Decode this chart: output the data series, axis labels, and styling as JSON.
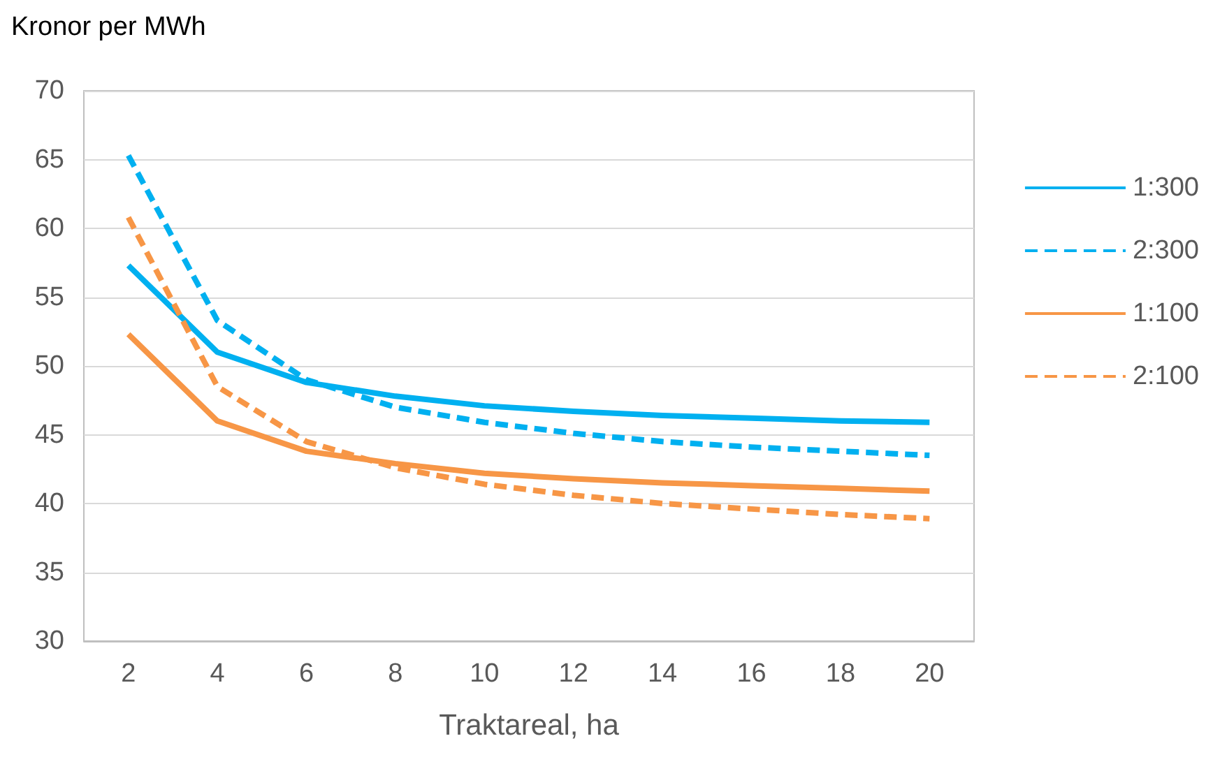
{
  "chart_data": {
    "type": "line",
    "ylabel": "Kronor per MWh",
    "xlabel": "Traktareal, ha",
    "categories": [
      "2",
      "4",
      "6",
      "8",
      "10",
      "12",
      "14",
      "16",
      "18",
      "20"
    ],
    "series": [
      {
        "name": "1:300",
        "color": "#00b0f0",
        "line_style": "solid",
        "values": [
          57.3,
          51,
          48.8,
          47.8,
          47.1,
          46.7,
          46.4,
          46.2,
          46,
          45.9
        ]
      },
      {
        "name": "2:300",
        "color": "#00b0f0",
        "line_style": "dashed",
        "values": [
          65.3,
          53.3,
          49,
          47,
          45.9,
          45.1,
          44.5,
          44.1,
          43.8,
          43.5
        ]
      },
      {
        "name": "1:100",
        "color": "#f79646",
        "line_style": "solid",
        "values": [
          52.3,
          46,
          43.8,
          42.9,
          42.2,
          41.8,
          41.5,
          41.3,
          41.1,
          40.9
        ]
      },
      {
        "name": "2:100",
        "color": "#f79646",
        "line_style": "dashed",
        "values": [
          60.8,
          48.5,
          44.5,
          42.6,
          41.4,
          40.6,
          40,
          39.6,
          39.2,
          38.9
        ]
      }
    ],
    "ylim": [
      30,
      70
    ],
    "yticks": [
      30,
      35,
      40,
      45,
      50,
      55,
      60,
      65,
      70
    ],
    "grid": "y",
    "legend": "right",
    "marker": "none"
  }
}
